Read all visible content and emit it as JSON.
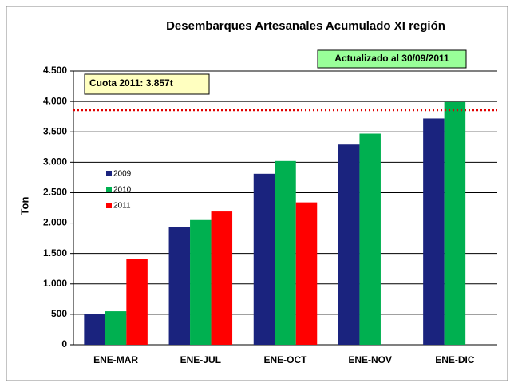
{
  "chart_data": {
    "type": "bar",
    "title": "Desembarques Artesanales Acumulado XI región",
    "y_label": "Ton",
    "categories": [
      "ENE-MAR",
      "ENE-JUL",
      "ENE-OCT",
      "ENE-NOV",
      "ENE-DIC"
    ],
    "series": [
      {
        "name": "2009",
        "color": "#1a237e",
        "values": [
          510,
          1930,
          2810,
          3290,
          3720
        ]
      },
      {
        "name": "2010",
        "color": "#00b050",
        "values": [
          550,
          2050,
          3020,
          3470,
          3990
        ]
      },
      {
        "name": "2011",
        "color": "#ff0000",
        "values": [
          1410,
          2190,
          2340,
          null,
          null
        ]
      }
    ],
    "ylim": [
      0,
      4500
    ],
    "yticks": [
      0,
      {
        "value": 500,
        "label": "500"
      },
      {
        "value": 1000,
        "label": "1.000"
      },
      {
        "value": 1500,
        "label": "1.500"
      },
      {
        "value": 2000,
        "label": "2.000"
      },
      {
        "value": 2500,
        "label": "2.500"
      },
      {
        "value": 3000,
        "label": "3.000"
      },
      {
        "value": 3500,
        "label": "3.500"
      },
      {
        "value": 4000,
        "label": "4.000"
      },
      {
        "value": 4500,
        "label": "4.500"
      }
    ],
    "grid": true,
    "reference_line": {
      "value": 3857,
      "label": "Cuota 2011: 3.857t",
      "color": "#e00000"
    },
    "note": "Actualizado al 30/09/2011"
  }
}
